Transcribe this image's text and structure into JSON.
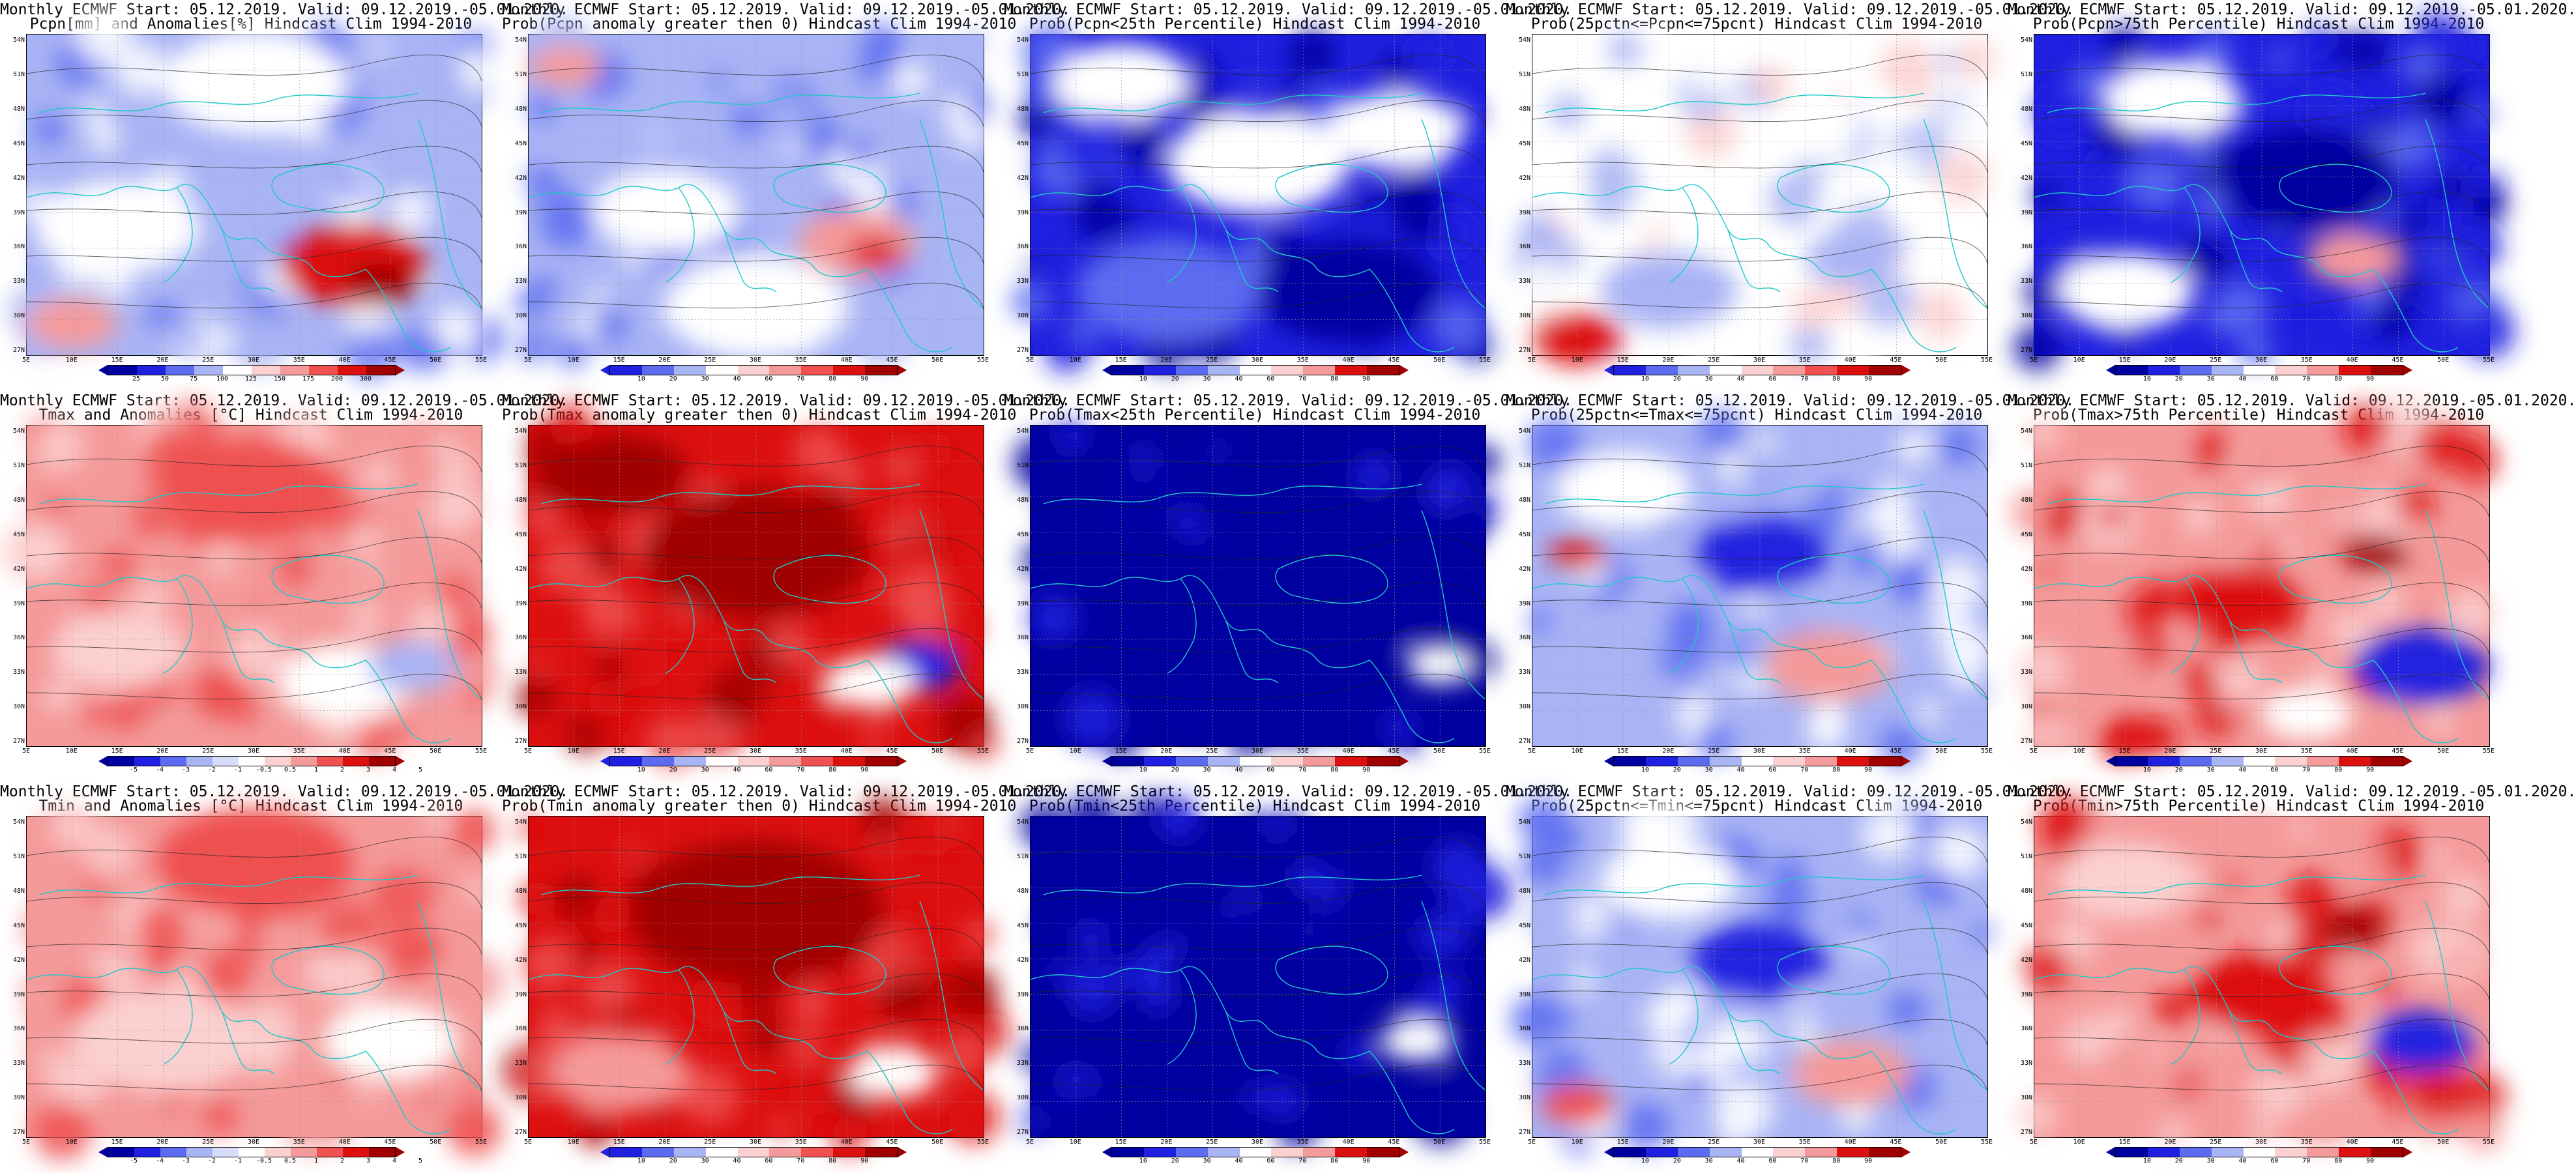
{
  "panels": [
    {
      "line1": "Monthly ECMWF Start: 05.12.2019. Valid: 09.12.2019.-05.01.2020.",
      "line2": "Pcpn[mm] and Anomalies[%] Hindcast Clim 1994-2010",
      "palette": "anom_pcp",
      "cbar_labels": [
        "25",
        "50",
        "75",
        "100",
        "125",
        "150",
        "175",
        "200",
        "300"
      ]
    },
    {
      "line1": "Monthly ECMWF Start: 05.12.2019. Valid: 09.12.2019.-05.01.2020.",
      "line2": "Prob(Pcpn anomaly greater then 0) Hindcast Clim 1994-2010",
      "palette": "prob_mixed",
      "cbar_labels": [
        "10",
        "20",
        "30",
        "40",
        "60",
        "70",
        "80",
        "90"
      ]
    },
    {
      "line1": "Monthly ECMWF Start: 05.12.2019. Valid: 09.12.2019.-05.01.2020.",
      "line2": "Prob(Pcpn<25th Percentile) Hindcast Clim 1994-2010",
      "palette": "prob_blue",
      "cbar_labels": [
        "10",
        "20",
        "30",
        "40",
        "60",
        "70",
        "80",
        "90"
      ]
    },
    {
      "line1": "Monthly ECMWF Start: 05.12.2019. Valid: 09.12.2019.-05.01.2020.",
      "line2": "Prob(25pctn<=Pcpn<=75pcnt) Hindcast Clim 1994-2010",
      "palette": "prob_white",
      "cbar_labels": [
        "10",
        "20",
        "30",
        "40",
        "60",
        "70",
        "80",
        "90"
      ]
    },
    {
      "line1": "Monthly ECMWF Start: 05.12.2019. Valid: 09.12.2019.-05.01.2020.",
      "line2": "Prob(Pcpn>75th Percentile) Hindcast Clim 1994-2010",
      "palette": "prob_blue2",
      "cbar_labels": [
        "10",
        "20",
        "30",
        "40",
        "60",
        "70",
        "80",
        "90"
      ]
    },
    {
      "line1": "Monthly ECMWF Start: 05.12.2019. Valid: 09.12.2019.-05.01.2020.",
      "line2": "Tmax and Anomalies [°C] Hindcast Clim 1994-2010",
      "palette": "anom_t_light",
      "cbar_labels": [
        "-5",
        "-4",
        "-3",
        "-2",
        "-1",
        "-0.5",
        "0.5",
        "1",
        "2",
        "3",
        "4",
        "5"
      ]
    },
    {
      "line1": "Monthly ECMWF Start: 05.12.2019. Valid: 09.12.2019.-05.01.2020.",
      "line2": "Prob(Tmax anomaly greater then 0) Hindcast Clim 1994-2010",
      "palette": "prob_red_dark",
      "cbar_labels": [
        "10",
        "20",
        "30",
        "40",
        "60",
        "70",
        "80",
        "90"
      ]
    },
    {
      "line1": "Monthly ECMWF Start: 05.12.2019. Valid: 09.12.2019.-05.01.2020.",
      "line2": "Prob(Tmax<25th Percentile) Hindcast Clim 1994-2010",
      "palette": "prob_navy",
      "cbar_labels": [
        "10",
        "20",
        "30",
        "40",
        "60",
        "70",
        "80",
        "90"
      ]
    },
    {
      "line1": "Monthly ECMWF Start: 05.12.2019. Valid: 09.12.2019.-05.01.2020.",
      "line2": "Prob(25pctn<=Tmax<=75pcnt) Hindcast Clim 1994-2010",
      "palette": "prob_mixed2",
      "cbar_labels": [
        "10",
        "20",
        "30",
        "40",
        "60",
        "70",
        "80",
        "90"
      ]
    },
    {
      "line1": "Monthly ECMWF Start: 05.12.2019. Valid: 09.12.2019.-05.01.2020.",
      "line2": "Prob(Tmax>75th Percentile) Hindcast Clim 1994-2010",
      "palette": "prob_red_mixed",
      "cbar_labels": [
        "10",
        "20",
        "30",
        "40",
        "60",
        "70",
        "80",
        "90"
      ]
    },
    {
      "line1": "Monthly ECMWF Start: 05.12.2019. Valid: 09.12.2019.-05.01.2020.",
      "line2": "Tmin and Anomalies [°C] Hindcast Clim 1994-2010",
      "palette": "anom_t_red",
      "cbar_labels": [
        "-5",
        "-4",
        "-3",
        "-2",
        "-1",
        "-0.5",
        "0.5",
        "1",
        "2",
        "3",
        "4",
        "5"
      ]
    },
    {
      "line1": "Monthly ECMWF Start: 05.12.2019. Valid: 09.12.2019.-05.01.2020.",
      "line2": "Prob(Tmin anomaly greater then 0) Hindcast Clim 1994-2010",
      "palette": "prob_red_dark",
      "cbar_labels": [
        "10",
        "20",
        "30",
        "40",
        "60",
        "70",
        "80",
        "90"
      ]
    },
    {
      "line1": "Monthly ECMWF Start: 05.12.2019. Valid: 09.12.2019.-05.01.2020.",
      "line2": "Prob(Tmin<25th Percentile) Hindcast Clim 1994-2010",
      "palette": "prob_navy",
      "cbar_labels": [
        "10",
        "20",
        "30",
        "40",
        "60",
        "70",
        "80",
        "90"
      ]
    },
    {
      "line1": "Monthly ECMWF Start: 05.12.2019. Valid: 09.12.2019.-05.01.2020.",
      "line2": "Prob(25pctn<=Tmin<=75pcnt) Hindcast Clim 1994-2010",
      "palette": "prob_mixed2",
      "cbar_labels": [
        "10",
        "20",
        "30",
        "40",
        "60",
        "70",
        "80",
        "90"
      ]
    },
    {
      "line1": "Monthly ECMWF Start: 05.12.2019. Valid: 09.12.2019.-05.01.2020.",
      "line2": "Prob(Tmin>75th Percentile) Hindcast Clim 1994-2010",
      "palette": "prob_red_mixed",
      "cbar_labels": [
        "10",
        "20",
        "30",
        "40",
        "60",
        "70",
        "80",
        "90"
      ]
    }
  ],
  "lat_labels": [
    "54N",
    "51N",
    "48N",
    "45N",
    "42N",
    "39N",
    "36N",
    "33N",
    "30N",
    "27N"
  ],
  "lon_labels": [
    "5E",
    "10E",
    "15E",
    "20E",
    "25E",
    "30E",
    "35E",
    "40E",
    "45E",
    "50E",
    "55E"
  ],
  "colors": {
    "blue_dark": "#0000a0",
    "blue": "#2020e0",
    "blue_mid": "#5c6cf0",
    "blue_light": "#a9b4f5",
    "blue_pale": "#d8dcfb",
    "white": "#ffffff",
    "red_pale": "#fbd0d0",
    "red_light": "#f59a9a",
    "red_mid": "#ef5050",
    "red": "#dd1010",
    "red_dark": "#a00000",
    "coast": "#20c8c8",
    "contour": "#222222"
  }
}
